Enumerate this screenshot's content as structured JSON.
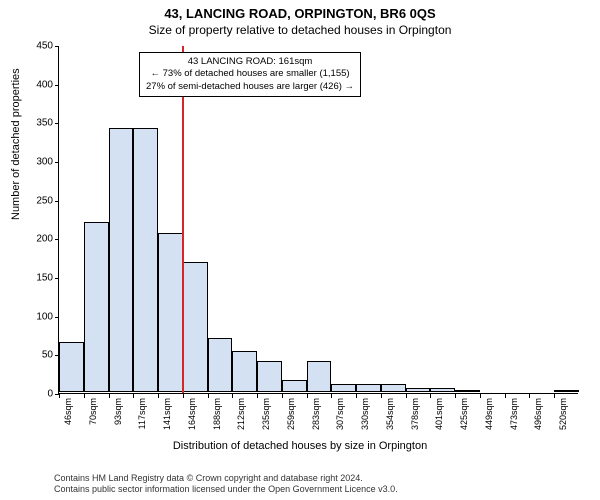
{
  "title": "43, LANCING ROAD, ORPINGTON, BR6 0QS",
  "subtitle": "Size of property relative to detached houses in Orpington",
  "ylabel": "Number of detached properties",
  "xlabel": "Distribution of detached houses by size in Orpington",
  "footer_line1": "Contains HM Land Registry data © Crown copyright and database right 2024.",
  "footer_line2": "Contains public sector information licensed under the Open Government Licence v3.0.",
  "chart": {
    "type": "histogram",
    "ylim": [
      0,
      450
    ],
    "yticks": [
      0,
      50,
      100,
      150,
      200,
      250,
      300,
      350,
      400,
      450
    ],
    "x_categories": [
      "46sqm",
      "70sqm",
      "93sqm",
      "117sqm",
      "141sqm",
      "164sqm",
      "188sqm",
      "212sqm",
      "235sqm",
      "259sqm",
      "283sqm",
      "307sqm",
      "330sqm",
      "354sqm",
      "378sqm",
      "401sqm",
      "425sqm",
      "449sqm",
      "473sqm",
      "496sqm",
      "520sqm"
    ],
    "values": [
      65,
      220,
      342,
      342,
      205,
      168,
      70,
      53,
      40,
      15,
      40,
      10,
      10,
      10,
      5,
      5,
      3,
      0,
      0,
      0,
      3
    ],
    "bar_fill": "#d3e1f2",
    "bar_stroke": "#000000",
    "background": "#ffffff",
    "marker_line_color": "#d62728",
    "marker_position_index": 5,
    "annotation": {
      "line1": "43 LANCING ROAD: 161sqm",
      "line2": "← 73% of detached houses are smaller (1,155)",
      "line3": "27% of semi-detached houses are larger (426) →"
    }
  }
}
